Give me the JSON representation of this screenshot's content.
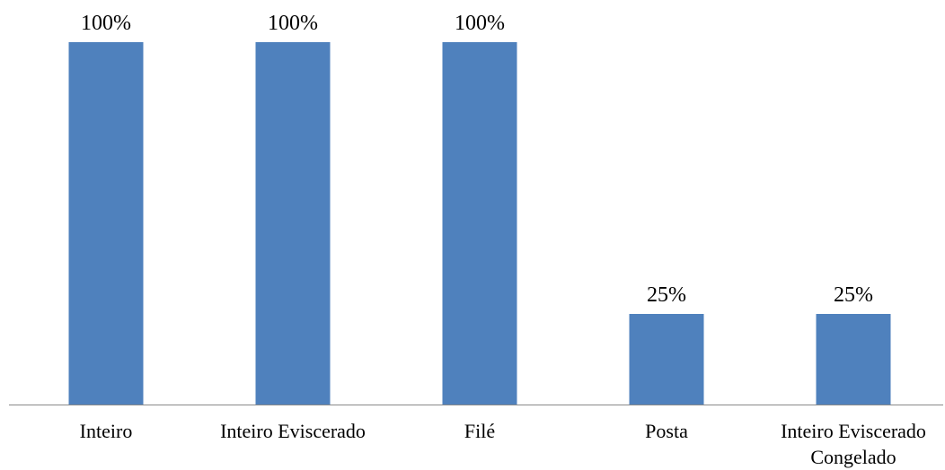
{
  "chart_data": {
    "type": "bar",
    "title": "",
    "xlabel": "",
    "ylabel": "",
    "categories": [
      "Inteiro",
      "Inteiro Eviscerado",
      "Filé",
      "Posta",
      "Inteiro Eviscerado Congelado"
    ],
    "category_label_lines": [
      [
        "Inteiro"
      ],
      [
        "Inteiro Eviscerado"
      ],
      [
        "Filé"
      ],
      [
        "Posta"
      ],
      [
        "Inteiro Eviscerado",
        "Congelado"
      ]
    ],
    "values": [
      100,
      100,
      100,
      25,
      25
    ],
    "data_labels": [
      "100%",
      "100%",
      "100%",
      "25%",
      "25%"
    ],
    "unit": "%",
    "ylim": [
      0,
      100
    ],
    "grid": false,
    "legend": "none",
    "colors": {
      "bar": "#4F81BD",
      "axis": "#898989",
      "text": "#000000"
    }
  }
}
